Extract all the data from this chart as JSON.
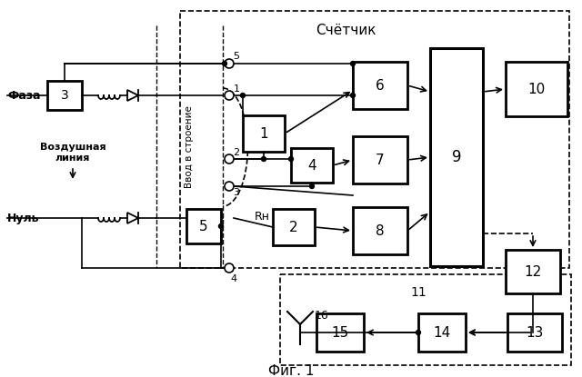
{
  "title": "Фиг. 1",
  "counter_label": "Счётчик",
  "module_label": "11",
  "vvod_label": "Ввод в строение",
  "faza_label": "Фаза",
  "null_label": "Нуль",
  "vozdushnaya_label": "Воздушная\nлиния",
  "rh_label": "Rн",
  "bg_color": "#ffffff",
  "line_color": "#000000"
}
